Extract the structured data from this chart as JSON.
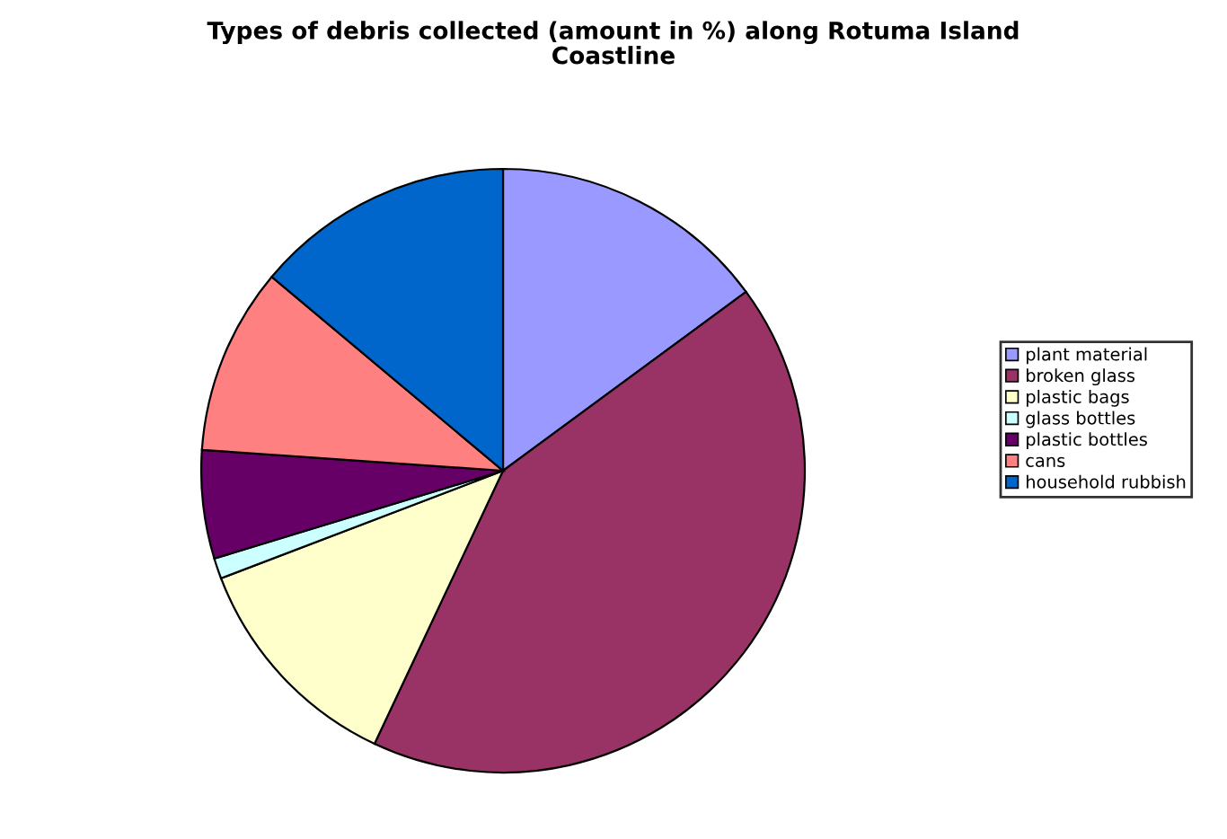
{
  "chart_data": {
    "type": "pie",
    "title": "Types of debris collected (amount in %) along Rotuma Island\nCoastline",
    "categories": [
      "plant material",
      "broken glass",
      "plastic bags",
      "glass bottles",
      "plastic bottles",
      "cans",
      "household rubbish"
    ],
    "values": [
      14.9,
      42.1,
      12.2,
      1.1,
      5.8,
      10.0,
      13.9
    ],
    "colors": [
      "#9999ff",
      "#993366",
      "#ffffcc",
      "#ccffff",
      "#660066",
      "#ff8080",
      "#0066cc"
    ],
    "legend": "right"
  }
}
